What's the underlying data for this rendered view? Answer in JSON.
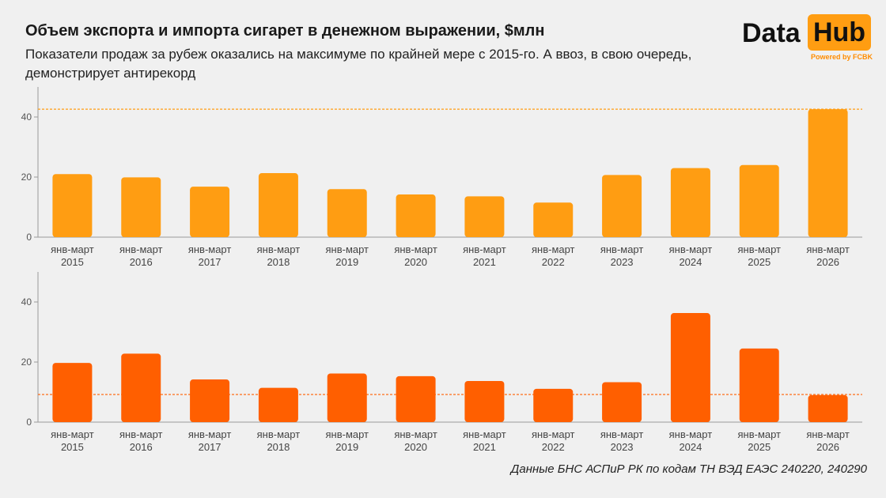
{
  "header": {
    "title": "Объем экспорта и импорта сигарет в денежном выражении, $млн",
    "subtitle": "Показатели продаж за рубеж оказались на максимуме по крайней мере с 2015-го. А ввоз, в свою очередь, демонстрирует антирекорд"
  },
  "logo": {
    "word1": "Data",
    "word2": "Hub",
    "powered": "Powered by FCBK",
    "accent": "#ff9d12"
  },
  "footnote": "Данные БНС АСПиР РК по кодам ТН ВЭД ЕАЭС  240220, 240290",
  "chart_data": [
    {
      "type": "bar",
      "categories": [
        [
          "янв-март",
          "2015"
        ],
        [
          "янв-март",
          "2016"
        ],
        [
          "янв-март",
          "2017"
        ],
        [
          "янв-март",
          "2018"
        ],
        [
          "янв-март",
          "2019"
        ],
        [
          "янв-март",
          "2020"
        ],
        [
          "янв-март",
          "2021"
        ],
        [
          "янв-март",
          "2022"
        ],
        [
          "янв-март",
          "2023"
        ],
        [
          "янв-март",
          "2024"
        ],
        [
          "янв-март",
          "2025"
        ],
        [
          "янв-март",
          "2026"
        ]
      ],
      "values": [
        21,
        19.9,
        16.8,
        21.3,
        16,
        14.2,
        13.6,
        11.5,
        20.7,
        23,
        24,
        42.6
      ],
      "ylim": [
        0,
        50
      ],
      "yticks": [
        0,
        20,
        40
      ],
      "reference_line": 42.6,
      "bar_color": "#ff9d12",
      "line_color": "#ff9d12",
      "grid": false
    },
    {
      "type": "bar",
      "categories": [
        [
          "янв-март",
          "2015"
        ],
        [
          "янв-март",
          "2016"
        ],
        [
          "янв-март",
          "2017"
        ],
        [
          "янв-март",
          "2018"
        ],
        [
          "янв-март",
          "2019"
        ],
        [
          "янв-март",
          "2020"
        ],
        [
          "янв-март",
          "2021"
        ],
        [
          "янв-март",
          "2022"
        ],
        [
          "янв-март",
          "2023"
        ],
        [
          "янв-март",
          "2024"
        ],
        [
          "янв-март",
          "2025"
        ],
        [
          "янв-март",
          "2026"
        ]
      ],
      "values": [
        19.7,
        22.8,
        14.2,
        11.4,
        16.2,
        15.3,
        13.7,
        11.1,
        13.3,
        36.3,
        24.5,
        9
      ],
      "ylim": [
        0,
        50
      ],
      "yticks": [
        0,
        20,
        40
      ],
      "reference_line": 9.2,
      "bar_color": "#ff5f00",
      "line_color": "#ff5f00",
      "grid": false
    }
  ]
}
